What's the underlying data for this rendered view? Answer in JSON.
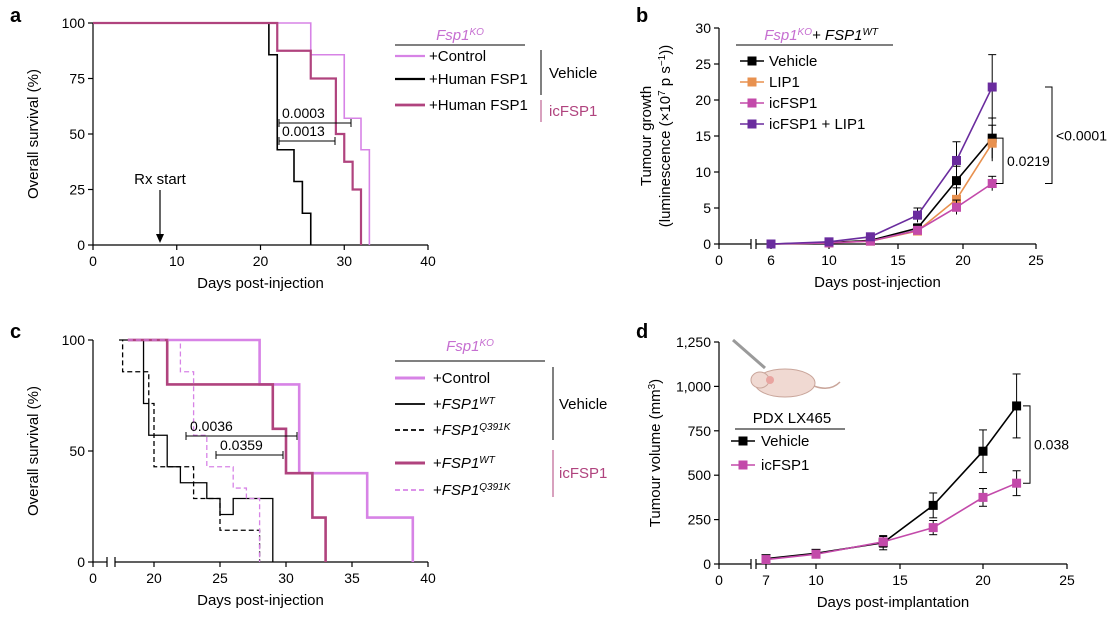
{
  "colors": {
    "black": "#000000",
    "control": "#d783e6",
    "icfsp1": "#b0437e",
    "fsp1_title": "#c66fd1",
    "lip1": "#e8914f",
    "icfsp1_b": "#c34aaa",
    "combo": "#6a2c9e"
  },
  "chart_data": [
    {
      "panel": "a",
      "type": "line",
      "subtype": "kaplan-meier",
      "xlabel": "Days post-injection",
      "ylabel": "Overall survival (%)",
      "xlim": [
        0,
        40
      ],
      "ylim": [
        0,
        100
      ],
      "xticks": [
        "0",
        "10",
        "20",
        "30",
        "40"
      ],
      "yticks": [
        "0",
        "25",
        "50",
        "75",
        "100"
      ],
      "legend_title": "Fsp1",
      "legend_title_sup": "KO",
      "series": [
        {
          "name": "+Control",
          "color": "#d783e6",
          "x": [
            0,
            26,
            26,
            30,
            30,
            32,
            32,
            33,
            33
          ],
          "y": [
            100,
            100,
            85.7,
            85.7,
            57.1,
            57.1,
            42.9,
            42.9,
            0
          ]
        },
        {
          "name": "+Human FSP1",
          "color": "#000000",
          "x": [
            0,
            21,
            21,
            22,
            22,
            24,
            24,
            25,
            25,
            26,
            26
          ],
          "y": [
            100,
            100,
            85.7,
            85.7,
            42.9,
            42.9,
            28.6,
            28.6,
            14.3,
            14.3,
            0
          ]
        },
        {
          "name": "+Human FSP1",
          "color": "#b0437e",
          "x": [
            0,
            22,
            22,
            26,
            26,
            29,
            29,
            30,
            30,
            31,
            31,
            32,
            32
          ],
          "y": [
            100,
            100,
            87.5,
            87.5,
            75,
            75,
            50,
            50,
            37.5,
            37.5,
            25,
            25,
            0
          ]
        }
      ],
      "group_labels": [
        "Vehicle",
        "icFSP1"
      ],
      "pvalues": [
        "0.0003",
        "0.0013"
      ],
      "annotation": "Rx start",
      "annotation_x": 8
    },
    {
      "panel": "b",
      "type": "line",
      "xlabel": "Days post-injection",
      "ylabel": "Tumour growth",
      "ylabel2": "(luminescence (×10",
      "ylabel2_sup": "7",
      "ylabel2_mid": " p s",
      "ylabel2_sup2": "−1",
      "ylabel2_end": "))",
      "xlim": [
        0,
        25
      ],
      "ylim": [
        0,
        30
      ],
      "xticks": [
        "0",
        "6",
        "10",
        "15",
        "20",
        "25"
      ],
      "yticks": [
        "0",
        "5",
        "10",
        "15",
        "20",
        "25",
        "30"
      ],
      "legend_title_a": "Fsp1",
      "legend_title_a_sup": "KO",
      "legend_title_b": " + FSP1",
      "legend_title_b_sup": "WT",
      "x": [
        6,
        10,
        13,
        16.5,
        19.5,
        22
      ],
      "series": [
        {
          "name": "Vehicle",
          "color": "#000000",
          "marker": "square",
          "values": [
            0,
            0.2,
            0.5,
            2.2,
            8.8,
            14.7
          ],
          "err": [
            0.1,
            0.2,
            0.3,
            0.6,
            2.0,
            2.8
          ]
        },
        {
          "name": "LIP1",
          "color": "#e8914f",
          "marker": "square",
          "values": [
            0,
            0.15,
            0.4,
            1.8,
            6.2,
            14.0
          ],
          "err": [
            0.1,
            0.2,
            0.3,
            0.5,
            1.6,
            2.5
          ]
        },
        {
          "name": "icFSP1",
          "color": "#c34aaa",
          "marker": "square",
          "values": [
            0,
            0.15,
            0.4,
            1.9,
            5.1,
            8.4
          ],
          "err": [
            0.1,
            0.2,
            0.3,
            0.5,
            1.0,
            1.0
          ]
        },
        {
          "name": "icFSP1 + LIP1",
          "color": "#6a2c9e",
          "marker": "square",
          "values": [
            0,
            0.3,
            1.0,
            4.0,
            11.6,
            21.8
          ],
          "err": [
            0.1,
            0.2,
            0.4,
            1.0,
            2.6,
            4.5
          ]
        }
      ],
      "pvalues": [
        "0.0219",
        "<0.0001"
      ]
    },
    {
      "panel": "c",
      "type": "line",
      "subtype": "kaplan-meier",
      "xlabel": "Days post-injection",
      "ylabel": "Overall survival (%)",
      "xlim": [
        0,
        40
      ],
      "ylim": [
        0,
        100
      ],
      "xticks": [
        "0",
        "15",
        "20",
        "25",
        "30",
        "35",
        "40"
      ],
      "yticks": [
        "0",
        "50",
        "100"
      ],
      "legend_title": "Fsp1",
      "legend_title_sup": "KO",
      "series": [
        {
          "name": "+Control",
          "color": "#d783e6",
          "dashed": false,
          "x": [
            15,
            28,
            28,
            31,
            31,
            36,
            36,
            39,
            39
          ],
          "y": [
            100,
            100,
            80,
            80,
            40,
            40,
            20,
            20,
            0
          ]
        },
        {
          "name": "+FSP1",
          "sup": "WT",
          "color": "#000000",
          "dashed": false,
          "x": [
            14,
            18,
            18,
            19,
            19,
            21,
            21,
            22,
            22,
            24,
            24,
            25,
            25,
            26,
            26,
            29,
            29
          ],
          "y": [
            100,
            100,
            71.4,
            71.4,
            57.1,
            57.1,
            42.9,
            42.9,
            35.7,
            35.7,
            28.6,
            28.6,
            21.4,
            21.4,
            28.6,
            28.6,
            0
          ]
        },
        {
          "name": "+FSP1",
          "sup": "Q391K",
          "color": "#000000",
          "dashed": true,
          "x": [
            13,
            14,
            14,
            19,
            19,
            20,
            20,
            22,
            22,
            23,
            23,
            25,
            25,
            27,
            27,
            28,
            28
          ],
          "y": [
            100,
            100,
            85.7,
            85.7,
            71.4,
            71.4,
            42.9,
            42.9,
            42.9,
            42.9,
            28.6,
            28.6,
            14.3,
            14.3,
            14.3,
            14.3,
            0
          ]
        },
        {
          "name": "+FSP1",
          "sup": "WT",
          "color": "#b0437e",
          "dashed": false,
          "x": [
            15,
            21,
            21,
            29,
            29,
            30,
            30,
            32,
            32,
            33,
            33
          ],
          "y": [
            100,
            100,
            80,
            80,
            60,
            60,
            40,
            40,
            20,
            20,
            0
          ]
        },
        {
          "name": "+FSP1",
          "sup": "Q391K",
          "color": "#d783e6",
          "dashed": true,
          "x": [
            15,
            22,
            22,
            23,
            23,
            24,
            24,
            26,
            26,
            27,
            27,
            28,
            28
          ],
          "y": [
            100,
            100,
            85.7,
            85.7,
            57.1,
            57.1,
            42.9,
            42.9,
            33.3,
            33.3,
            28.6,
            28.6,
            0
          ]
        }
      ],
      "group_labels": [
        "Vehicle",
        "icFSP1"
      ],
      "pvalues": [
        "0.0036",
        "0.0359"
      ]
    },
    {
      "panel": "d",
      "type": "line",
      "xlabel": "Days post-implantation",
      "ylabel": "Tumour volume (mm",
      "ylabel_sup": "3",
      "ylabel_end": ")",
      "xlim": [
        0,
        25
      ],
      "ylim": [
        0,
        1250
      ],
      "xticks": [
        "0",
        "7",
        "10",
        "15",
        "20",
        "25"
      ],
      "yticks": [
        "0",
        "250",
        "500",
        "750",
        "1,000",
        "1,250"
      ],
      "legend_title": "PDX LX465",
      "x": [
        7,
        10,
        14,
        17,
        20,
        22
      ],
      "series": [
        {
          "name": "Vehicle",
          "color": "#000000",
          "marker": "square",
          "values": [
            30,
            60,
            120,
            330,
            635,
            890
          ],
          "err": [
            15,
            20,
            40,
            70,
            120,
            180
          ]
        },
        {
          "name": "icFSP1",
          "color": "#c34aaa",
          "marker": "square",
          "values": [
            25,
            55,
            125,
            205,
            375,
            455
          ],
          "err": [
            10,
            20,
            30,
            40,
            50,
            70
          ]
        }
      ],
      "pvalues": [
        "0.038"
      ]
    }
  ],
  "panels": {
    "a": "a",
    "b": "b",
    "c": "c",
    "d": "d"
  }
}
